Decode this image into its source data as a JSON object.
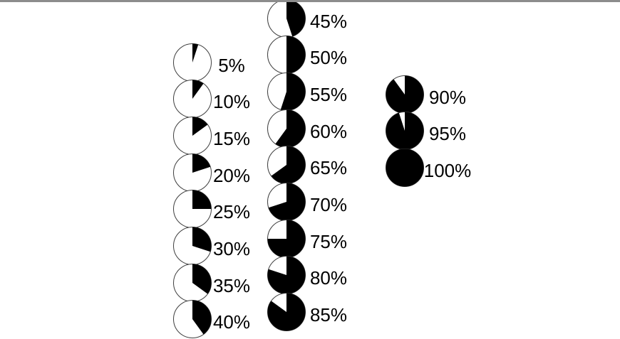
{
  "page": {
    "background_color": "#ffffff",
    "top_border_color": "#8c8c8c"
  },
  "chart_data": {
    "type": "pie",
    "unit": "%",
    "start_angle_deg": 0,
    "direction": "clockwise",
    "fill_color": "#000000",
    "empty_color": "#ffffff",
    "outline_color": "#3f3f3f",
    "label_color": "#000000",
    "columns": [
      {
        "name": "left",
        "items": [
          {
            "value": 5,
            "label": "5%"
          },
          {
            "value": 10,
            "label": "10%"
          },
          {
            "value": 15,
            "label": "15%"
          },
          {
            "value": 20,
            "label": "20%"
          },
          {
            "value": 25,
            "label": "25%"
          },
          {
            "value": 30,
            "label": "30%"
          },
          {
            "value": 35,
            "label": "35%"
          },
          {
            "value": 40,
            "label": "40%"
          }
        ]
      },
      {
        "name": "middle",
        "items": [
          {
            "value": 45,
            "label": "45%"
          },
          {
            "value": 50,
            "label": "50%"
          },
          {
            "value": 55,
            "label": "55%"
          },
          {
            "value": 60,
            "label": "60%"
          },
          {
            "value": 65,
            "label": "65%"
          },
          {
            "value": 70,
            "label": "70%"
          },
          {
            "value": 75,
            "label": "75%"
          },
          {
            "value": 80,
            "label": "80%"
          },
          {
            "value": 85,
            "label": "85%"
          }
        ]
      },
      {
        "name": "right",
        "items": [
          {
            "value": 90,
            "label": "90%"
          },
          {
            "value": 95,
            "label": "95%"
          },
          {
            "value": 100,
            "label": "100%"
          }
        ]
      }
    ]
  }
}
